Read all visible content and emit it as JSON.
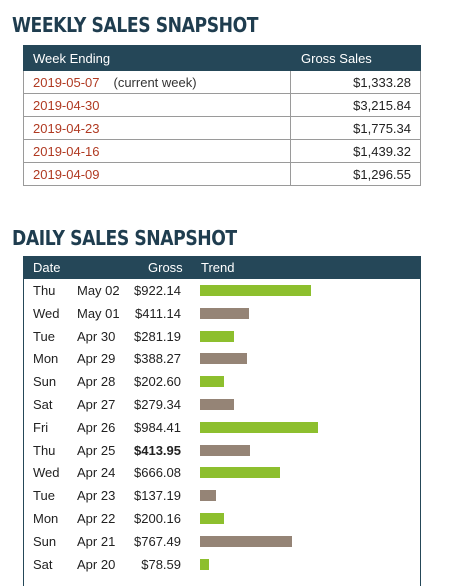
{
  "weekly": {
    "title": "WEEKLY SALES SNAPSHOT",
    "headers": [
      "Week Ending",
      "Gross Sales"
    ],
    "rows": [
      {
        "date": "2019-05-07",
        "note": "(current week)",
        "amount": "$1,333.28"
      },
      {
        "date": "2019-04-30",
        "note": "",
        "amount": "$3,215.84"
      },
      {
        "date": "2019-04-23",
        "note": "",
        "amount": "$1,775.34"
      },
      {
        "date": "2019-04-16",
        "note": "",
        "amount": "$1,439.32"
      },
      {
        "date": "2019-04-09",
        "note": "",
        "amount": "$1,296.55"
      }
    ]
  },
  "daily": {
    "title": "DAILY SALES SNAPSHOT",
    "headers": [
      "Date",
      "Gross",
      "Trend"
    ],
    "trend_max": 1000,
    "colors": {
      "above": "#8dbf2e",
      "below": "#958476"
    },
    "rows": [
      {
        "dow": "Thu",
        "date": "May 02",
        "amount": "$922.14",
        "value": 922.14,
        "trend": "above",
        "bold": false
      },
      {
        "dow": "Wed",
        "date": "May 01",
        "amount": "$411.14",
        "value": 411.14,
        "trend": "below",
        "bold": false
      },
      {
        "dow": "Tue",
        "date": "Apr 30",
        "amount": "$281.19",
        "value": 281.19,
        "trend": "above",
        "bold": false
      },
      {
        "dow": "Mon",
        "date": "Apr 29",
        "amount": "$388.27",
        "value": 388.27,
        "trend": "below",
        "bold": false
      },
      {
        "dow": "Sun",
        "date": "Apr 28",
        "amount": "$202.60",
        "value": 202.6,
        "trend": "above",
        "bold": false
      },
      {
        "dow": "Sat",
        "date": "Apr 27",
        "amount": "$279.34",
        "value": 279.34,
        "trend": "below",
        "bold": false
      },
      {
        "dow": "Fri",
        "date": "Apr 26",
        "amount": "$984.41",
        "value": 984.41,
        "trend": "above",
        "bold": false
      },
      {
        "dow": "Thu",
        "date": "Apr 25",
        "amount": "$413.95",
        "value": 413.95,
        "trend": "below",
        "bold": true
      },
      {
        "dow": "Wed",
        "date": "Apr 24",
        "amount": "$666.08",
        "value": 666.08,
        "trend": "above",
        "bold": false
      },
      {
        "dow": "Tue",
        "date": "Apr 23",
        "amount": "$137.19",
        "value": 137.19,
        "trend": "below",
        "bold": false
      },
      {
        "dow": "Mon",
        "date": "Apr 22",
        "amount": "$200.16",
        "value": 200.16,
        "trend": "above",
        "bold": false
      },
      {
        "dow": "Sun",
        "date": "Apr 21",
        "amount": "$767.49",
        "value": 767.49,
        "trend": "below",
        "bold": false
      },
      {
        "dow": "Sat",
        "date": "Apr 20",
        "amount": "$78.59",
        "value": 78.59,
        "trend": "above",
        "bold": false
      }
    ]
  }
}
